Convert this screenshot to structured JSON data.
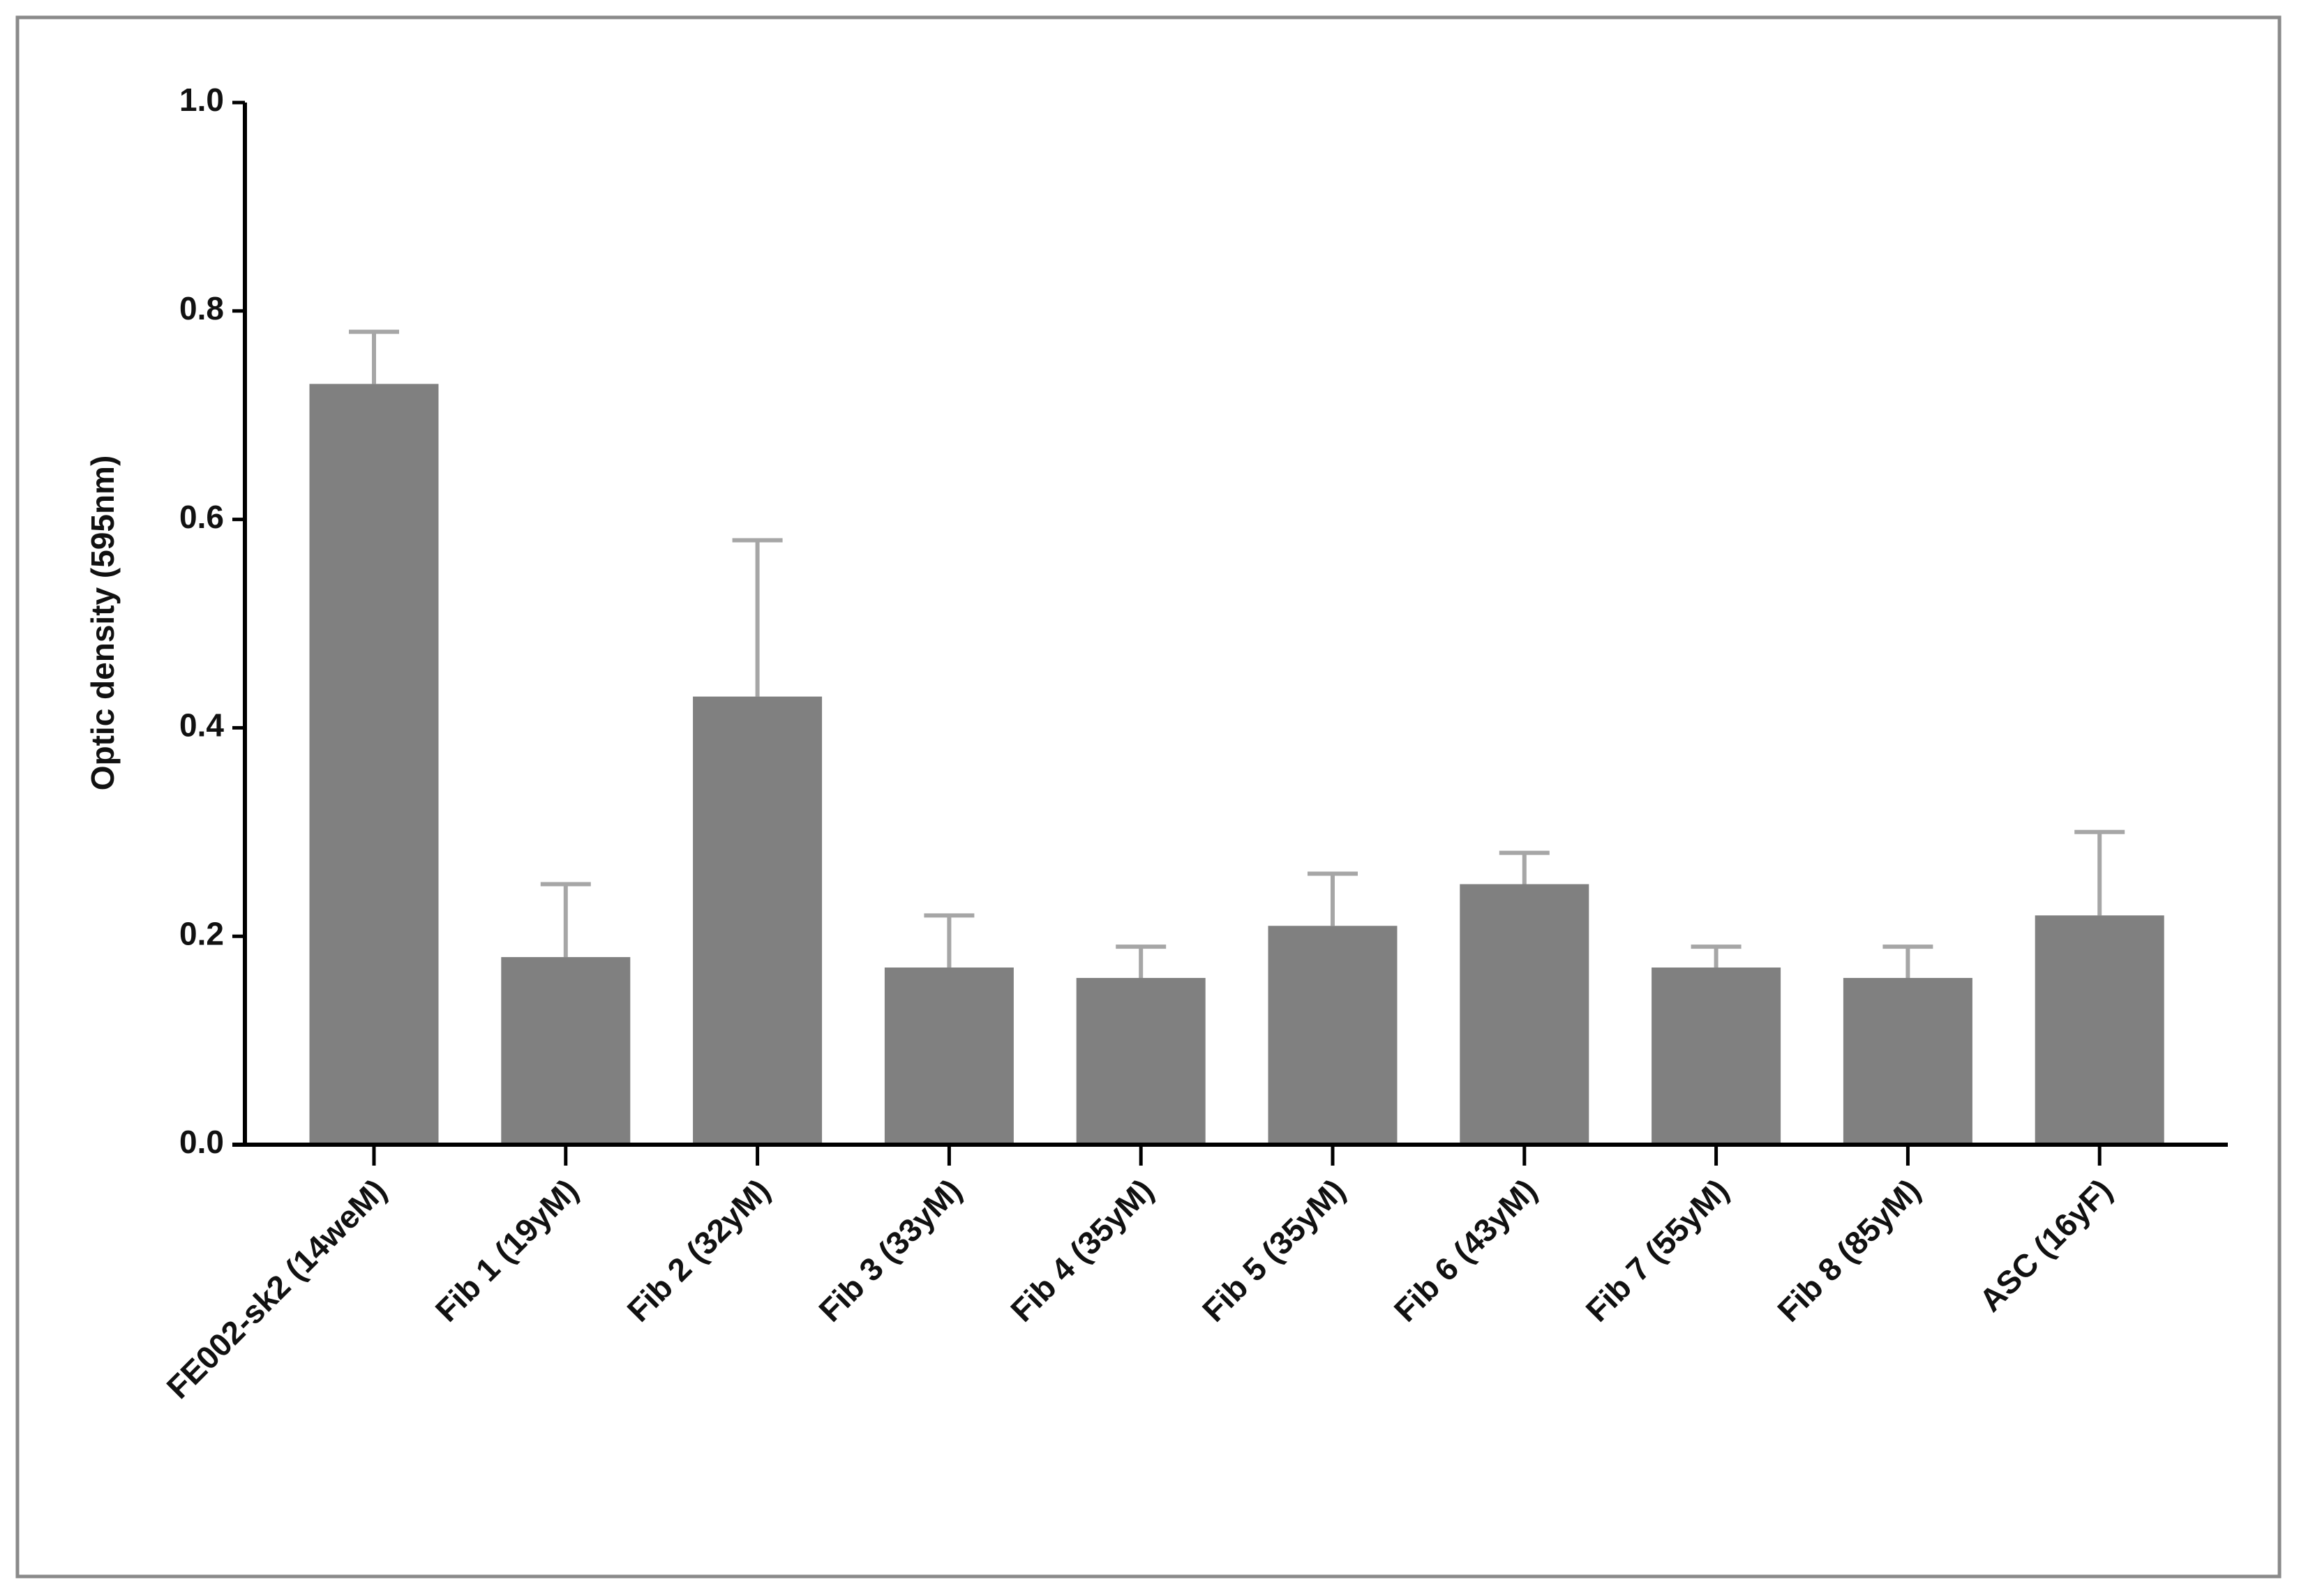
{
  "chart_data": {
    "type": "bar",
    "y_label": "Optic density (595nm)",
    "categories": [
      "FE002-sk2 (14weM)",
      "Fib 1 (19yM)",
      "Fib 2 (32yM)",
      "Fib 3 (33yM)",
      "Fib 4 (35yM)",
      "Fib 5 (35yM)",
      "Fib 6 (43yM)",
      "Fib 7 (55yM)",
      "Fib 8 (85yM)",
      "ASC (16yF)"
    ],
    "values": [
      0.73,
      0.18,
      0.43,
      0.17,
      0.16,
      0.21,
      0.25,
      0.17,
      0.16,
      0.22
    ],
    "errors": [
      0.05,
      0.07,
      0.15,
      0.05,
      0.03,
      0.05,
      0.03,
      0.02,
      0.03,
      0.08
    ],
    "color": "#808080",
    "error_color": "#a6a6a6",
    "ylim": [
      0,
      1
    ],
    "yticks": [
      {
        "value": 0,
        "label": "0.0"
      },
      0.2,
      0.4,
      0.6,
      0.8,
      {
        "value": 1,
        "label": "1.0"
      }
    ],
    "grid": false
  }
}
